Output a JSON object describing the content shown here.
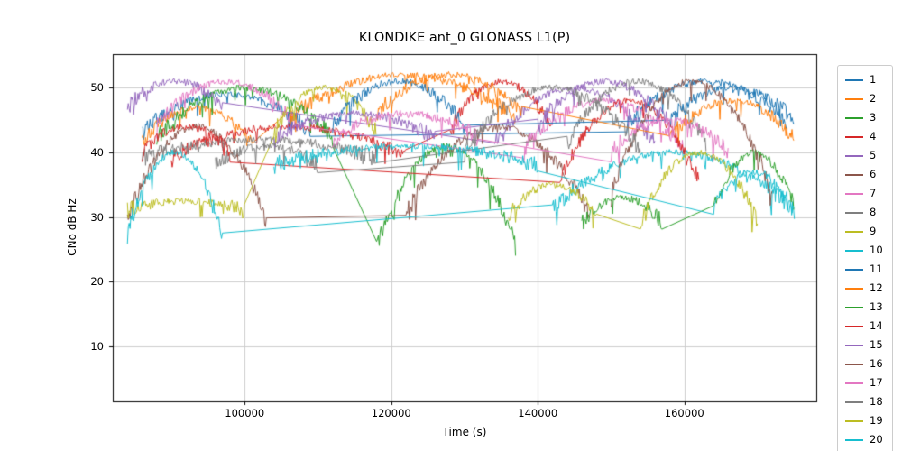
{
  "chart_data": {
    "type": "line",
    "title": "KLONDIKE ant_0 GLONASS L1(P)",
    "xlabel": "Time (s)",
    "ylabel": "CNo dB Hz",
    "xlim": [
      82000,
      178000
    ],
    "ylim": [
      1.5,
      55.2
    ],
    "xticks": [
      100000,
      120000,
      140000,
      160000
    ],
    "xticklabels": [
      "100000",
      "120000",
      "140000",
      "160000"
    ],
    "yticks": [
      10,
      20,
      30,
      40,
      50
    ],
    "yticklabels": [
      "10",
      "20",
      "30",
      "40",
      "50"
    ],
    "grid": true,
    "grid_color": "#cccccc",
    "axes_color": "#000000",
    "legend_position": "right-outside",
    "sample_step_s": 120,
    "noise": {
      "base": 0.5,
      "extra_at_edges": 1.0,
      "spike_prob": 0.05,
      "spike_max": 3.0
    },
    "series": [
      {
        "name": "1",
        "color": "#1f77b4",
        "arcs": [
          {
            "t": [
              86000,
              109000
            ],
            "peak": 49,
            "edge": 43
          },
          {
            "t": [
              152000,
              174000
            ],
            "peak": 51,
            "edge": 44
          }
        ]
      },
      {
        "name": "2",
        "color": "#ff7f0e",
        "arcs": [
          {
            "t": [
              86000,
              101000
            ],
            "peak": 47,
            "edge": 41
          },
          {
            "t": [
              106000,
              137000
            ],
            "peak": 52,
            "edge": 45
          }
        ]
      },
      {
        "name": "3",
        "color": "#2ca02c",
        "arcs": [
          {
            "t": [
              88000,
              112000
            ],
            "peak": 50,
            "edge": 42
          },
          {
            "t": [
              118000,
              137000
            ],
            "peak": 41,
            "edge": 25
          }
        ]
      },
      {
        "name": "4",
        "color": "#d62728",
        "arcs": [
          {
            "t": [
              90000,
              122000
            ],
            "peak": 44,
            "edge": 39
          },
          {
            "t": [
              128000,
              142000
            ],
            "peak": 51,
            "edge": 43
          }
        ]
      },
      {
        "name": "5",
        "color": "#9467bd",
        "arcs": [
          {
            "t": [
              84000,
              97000
            ],
            "peak": 51,
            "edge": 47
          },
          {
            "t": [
              134000,
              156000
            ],
            "peak": 50,
            "edge": 41
          }
        ]
      },
      {
        "name": "6",
        "color": "#8c564b",
        "arcs": [
          {
            "t": [
              84000,
              103000
            ],
            "peak": 44,
            "edge": 29
          },
          {
            "t": [
              122000,
              147000
            ],
            "peak": 44,
            "edge": 30
          }
        ]
      },
      {
        "name": "7",
        "color": "#e377c2",
        "arcs": [
          {
            "t": [
              88000,
              107000
            ],
            "peak": 51,
            "edge": 44
          },
          {
            "t": [
              138000,
              160000
            ],
            "peak": 48,
            "edge": 40
          }
        ]
      },
      {
        "name": "8",
        "color": "#7f7f7f",
        "arcs": [
          {
            "t": [
              86000,
              118000
            ],
            "peak": 42,
            "edge": 39
          },
          {
            "t": [
              144000,
              163000
            ],
            "peak": 51,
            "edge": 41
          }
        ]
      },
      {
        "name": "9",
        "color": "#bcbd22",
        "arcs": [
          {
            "t": [
              84000,
              100000
            ],
            "peak": 32.5,
            "edge": 31
          },
          {
            "t": [
              104000,
              118000
            ],
            "peak": 50,
            "edge": 43
          }
        ]
      },
      {
        "name": "10",
        "color": "#17becf",
        "arcs": [
          {
            "t": [
              84000,
              97000
            ],
            "peak": 40,
            "edge": 27
          },
          {
            "t": [
              142000,
              175000
            ],
            "peak": 40,
            "edge": 31
          }
        ]
      },
      {
        "name": "11",
        "color": "#1f77b4",
        "arcs": [
          {
            "t": [
              112000,
              130000
            ],
            "peak": 51,
            "edge": 44
          },
          {
            "t": [
              158000,
              175000
            ],
            "peak": 50,
            "edge": 45
          }
        ]
      },
      {
        "name": "12",
        "color": "#ff7f0e",
        "arcs": [
          {
            "t": [
              118000,
              138000
            ],
            "peak": 52,
            "edge": 46
          },
          {
            "t": [
              158000,
              175000
            ],
            "peak": 48,
            "edge": 42
          }
        ]
      },
      {
        "name": "13",
        "color": "#2ca02c",
        "arcs": [
          {
            "t": [
              146000,
              157000
            ],
            "peak": 33,
            "edge": 29
          },
          {
            "t": [
              164000,
              175000
            ],
            "peak": 40,
            "edge": 31
          }
        ]
      },
      {
        "name": "14",
        "color": "#d62728",
        "arcs": [
          {
            "t": [
              86000,
              98000
            ],
            "peak": 44,
            "edge": 40
          },
          {
            "t": [
              143000,
              162000
            ],
            "peak": 48,
            "edge": 35
          }
        ]
      },
      {
        "name": "15",
        "color": "#9467bd",
        "arcs": [
          {
            "t": [
              104000,
              126000
            ],
            "peak": 46,
            "edge": 42
          },
          {
            "t": [
              140000,
              158000
            ],
            "peak": 51,
            "edge": 44
          }
        ]
      },
      {
        "name": "16",
        "color": "#8c564b",
        "arcs": [
          {
            "t": [
              150000,
              172000
            ],
            "peak": 51,
            "edge": 33
          }
        ]
      },
      {
        "name": "17",
        "color": "#e377c2",
        "arcs": [
          {
            "t": [
              112000,
              132000
            ],
            "peak": 46,
            "edge": 42
          },
          {
            "t": [
              150000,
              166000
            ],
            "peak": 45,
            "edge": 40
          }
        ]
      },
      {
        "name": "18",
        "color": "#7f7f7f",
        "arcs": [
          {
            "t": [
              96000,
              110000
            ],
            "peak": 41,
            "edge": 38
          },
          {
            "t": [
              130000,
              154000
            ],
            "peak": 50,
            "edge": 40
          }
        ]
      },
      {
        "name": "19",
        "color": "#bcbd22",
        "arcs": [
          {
            "t": [
              136000,
              148000
            ],
            "peak": 35,
            "edge": 30
          },
          {
            "t": [
              154000,
              170000
            ],
            "peak": 40,
            "edge": 29
          }
        ]
      },
      {
        "name": "20",
        "color": "#17becf",
        "arcs": [
          {
            "t": [
              104000,
              140000
            ],
            "peak": 41,
            "edge": 38
          },
          {
            "t": [
              164000,
              175000
            ],
            "peak": 37,
            "edge": 31
          }
        ]
      }
    ]
  }
}
